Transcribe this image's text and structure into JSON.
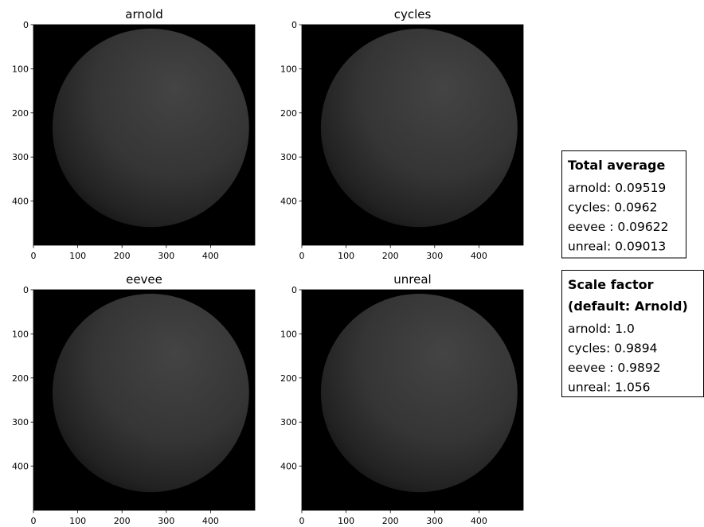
{
  "chart_data": [
    {
      "type": "image",
      "title": "arnold",
      "xlim": [
        0,
        500
      ],
      "ylim": [
        500,
        0
      ],
      "xticks": [
        0,
        100,
        200,
        300,
        400
      ],
      "yticks": [
        0,
        100,
        200,
        300,
        400
      ]
    },
    {
      "type": "image",
      "title": "cycles",
      "xlim": [
        0,
        500
      ],
      "ylim": [
        500,
        0
      ],
      "xticks": [
        0,
        100,
        200,
        300,
        400
      ],
      "yticks": [
        0,
        100,
        200,
        300,
        400
      ]
    },
    {
      "type": "image",
      "title": "eevee",
      "xlim": [
        0,
        500
      ],
      "ylim": [
        500,
        0
      ],
      "xticks": [
        0,
        100,
        200,
        300,
        400
      ],
      "yticks": [
        0,
        100,
        200,
        300,
        400
      ]
    },
    {
      "type": "image",
      "title": "unreal",
      "xlim": [
        0,
        500
      ],
      "ylim": [
        500,
        0
      ],
      "xticks": [
        0,
        100,
        200,
        300,
        400
      ],
      "yticks": [
        0,
        100,
        200,
        300,
        400
      ]
    }
  ],
  "annotations": [
    {
      "title": [
        "Total average"
      ],
      "lines": [
        "arnold: 0.09519",
        "cycles: 0.0962",
        "eevee : 0.09622",
        "unreal: 0.09013"
      ]
    },
    {
      "title": [
        "Scale factor",
        "(default: Arnold)"
      ],
      "lines": [
        "arnold: 1.0",
        "cycles: 0.9894",
        "eevee : 0.9892",
        "unreal: 1.056"
      ]
    }
  ]
}
